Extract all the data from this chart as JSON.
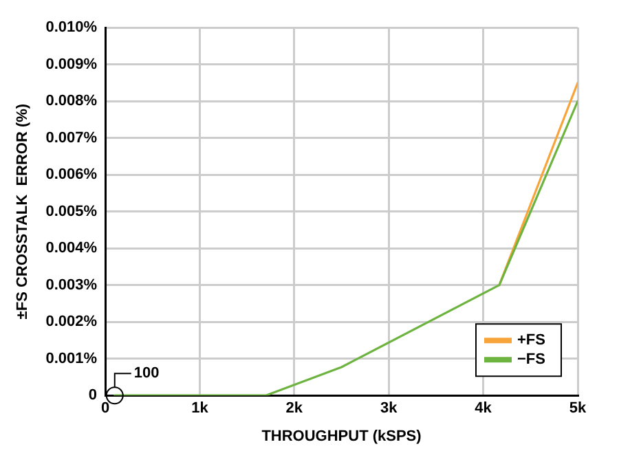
{
  "chart_data": {
    "type": "line",
    "xlabel": "THROUGHPUT (kSPS)",
    "ylabel": "±FS CROSSTALK  ERROR (%)",
    "xlim": [
      0,
      5000
    ],
    "xticks": [
      0,
      {
        "value": 1000,
        "label": "1k"
      },
      {
        "value": 2000,
        "label": "2k"
      },
      {
        "value": 3000,
        "label": "3k"
      },
      {
        "value": 4000,
        "label": "4k"
      },
      {
        "value": 5000,
        "label": "5k"
      }
    ],
    "ylim": [
      0,
      0.01
    ],
    "yticks": [
      0,
      {
        "value": 0.001,
        "label": "0.001%"
      },
      {
        "value": 0.002,
        "label": "0.002%"
      },
      {
        "value": 0.003,
        "label": "0.003%"
      },
      {
        "value": 0.004,
        "label": "0.004%"
      },
      {
        "value": 0.005,
        "label": "0.005%"
      },
      {
        "value": 0.006,
        "label": "0.006%"
      },
      {
        "value": 0.007,
        "label": "0.007%"
      },
      {
        "value": 0.008,
        "label": "0.008%"
      },
      {
        "value": 0.009,
        "label": "0.009%"
      },
      {
        "value": 0.01,
        "label": "0.010%"
      }
    ],
    "series": [
      {
        "name": "+FS",
        "color": "#f7a43a",
        "x": [
          4170,
          5000
        ],
        "values": [
          0.003,
          0.0085
        ]
      },
      {
        "name": "−FS",
        "color": "#6db33f",
        "x": [
          100,
          1700,
          2500,
          4170,
          5000
        ],
        "values": [
          0,
          0,
          0.00077,
          0.003,
          0.008
        ]
      }
    ],
    "annotations": [
      "100"
    ],
    "grid": true,
    "legend": "bottom right",
    "marker": "none",
    "line_style": "solid"
  }
}
